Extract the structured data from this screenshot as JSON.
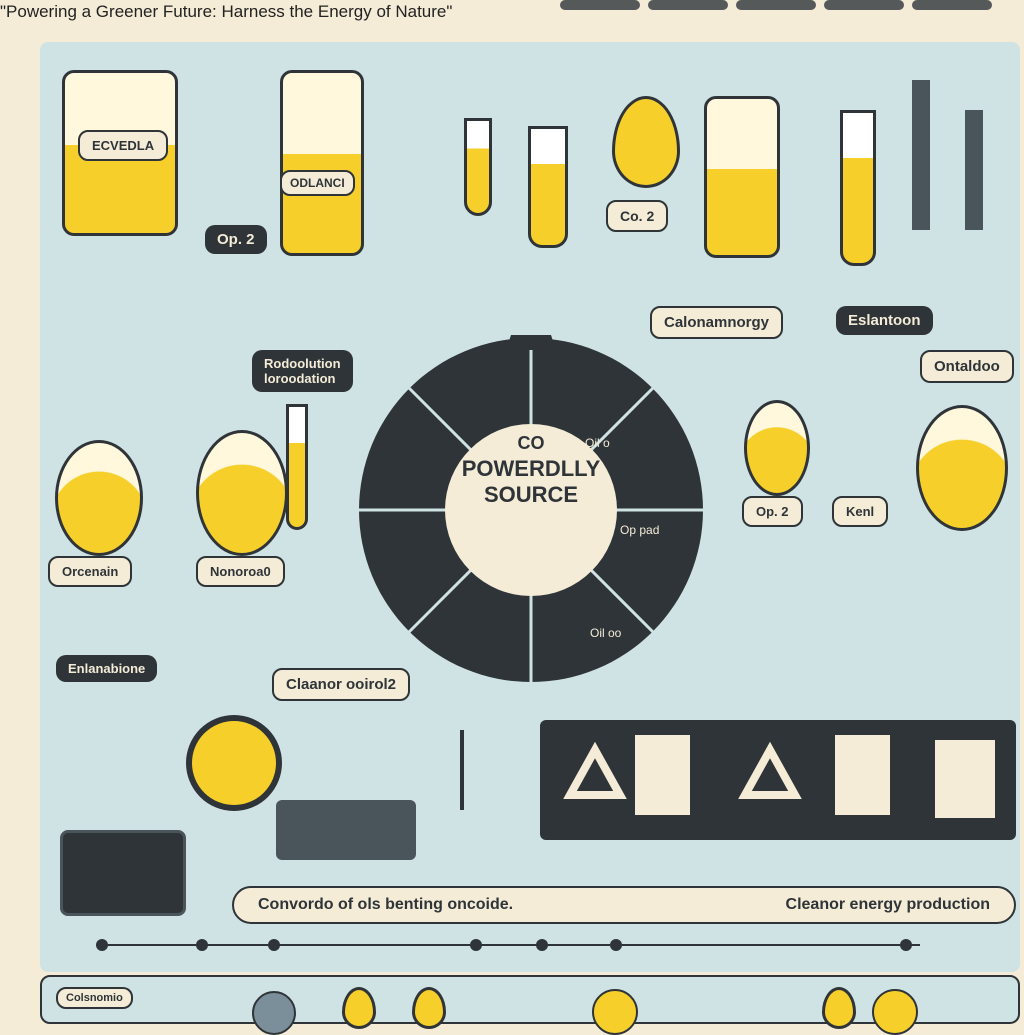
{
  "header": {
    "title": "\"Powering a Greener Future: Harness the Energy of Nature\""
  },
  "labels": {
    "barrel": "ECVEDLA",
    "bottle": "ODLANCI",
    "op2_left": "Op. 2",
    "co2": "Co. 2",
    "calonamnorgy": "Calonamnorgy",
    "eslantoon": "Eslantoon",
    "ontaldoo": "Ontaldoo",
    "reduction": "Rodoolution\nloroodation",
    "orcenain": "Orcenain",
    "nonoroa": "Nonoroa0",
    "enalabione": "Enlanabione",
    "cleanor": "Claanor ooirol2",
    "op2_right": "Op. 2",
    "kenl": "Kenl",
    "oil_a": "Oil o",
    "oil_b": "Oil oo",
    "op_pad": "Op pad"
  },
  "wheel": {
    "line1": "CO",
    "line2": "POWERDLLY",
    "line3": "SOURCE"
  },
  "bottom_bar": {
    "left": "Convordo of ols benting oncoide.",
    "right": "Cleanor energy production"
  },
  "bottom_strip_label": "Colsnomio",
  "colors": {
    "dark": "#2f3438",
    "yellow": "#f6cf2a",
    "teal": "#cfe3e5",
    "cream": "#f4ecd7",
    "leaf": "#6d8b3a"
  }
}
